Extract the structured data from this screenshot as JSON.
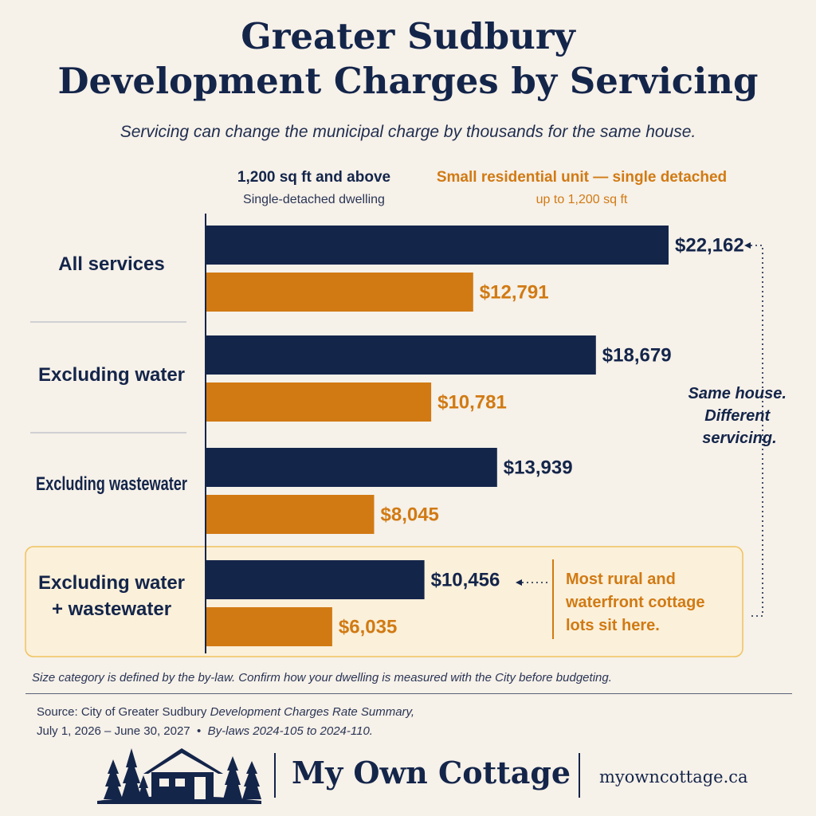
{
  "header": {
    "title_line1": "Greater Sudbury",
    "title_line2": "Development Charges by Servicing",
    "subtitle": "Servicing can change the municipal charge by thousands for the same house."
  },
  "legend": {
    "series1_title": "1,200 sq ft and above",
    "series1_sub": "Single-detached dwelling",
    "series2_title": "Small residential unit — single detached",
    "series2_sub": "up to 1,200 sq ft"
  },
  "colors": {
    "navy": "#14254a",
    "orange": "#d17a13",
    "highlight_bg": "#fbf0da",
    "highlight_border": "#f0c25e"
  },
  "chart_data": {
    "type": "bar",
    "orientation": "horizontal",
    "categories": [
      "All services",
      "Excluding water",
      "Excluding wastewater",
      "Excluding water + wastewater"
    ],
    "series": [
      {
        "name": "1,200 sq ft and above",
        "values": [
          22162,
          18679,
          13939,
          10456
        ],
        "labels": [
          "$22,162",
          "$18,679",
          "$13,939",
          "$10,456"
        ]
      },
      {
        "name": "Small residential unit — single detached",
        "values": [
          12791,
          10781,
          8045,
          6035
        ],
        "labels": [
          "$12,791",
          "$10,781",
          "$8,045",
          "$6,035"
        ]
      }
    ],
    "xlim": [
      0,
      22162
    ]
  },
  "annotations": {
    "bracket_note": [
      "Same house.",
      "Different",
      "servicing."
    ],
    "rural_note": [
      "Most rural and",
      "waterfront cottage",
      "lots sit here."
    ]
  },
  "footer": {
    "footnote": "Size category is defined by the by-law. Confirm how your dwelling is measured with the City before budgeting.",
    "source_prefix": "Source: City of Greater Sudbury ",
    "source_title": "Development Charges Rate Summary,",
    "source_dates": "July 1, 2026 – June 30, 2027",
    "source_sep": "•",
    "source_bylaws": "By-laws 2024-105 to 2024-110."
  },
  "brand": {
    "name": "My Own Cottage",
    "url": "myowncottage.ca",
    "logo_icon": "cottage-pine-trees-logo"
  }
}
